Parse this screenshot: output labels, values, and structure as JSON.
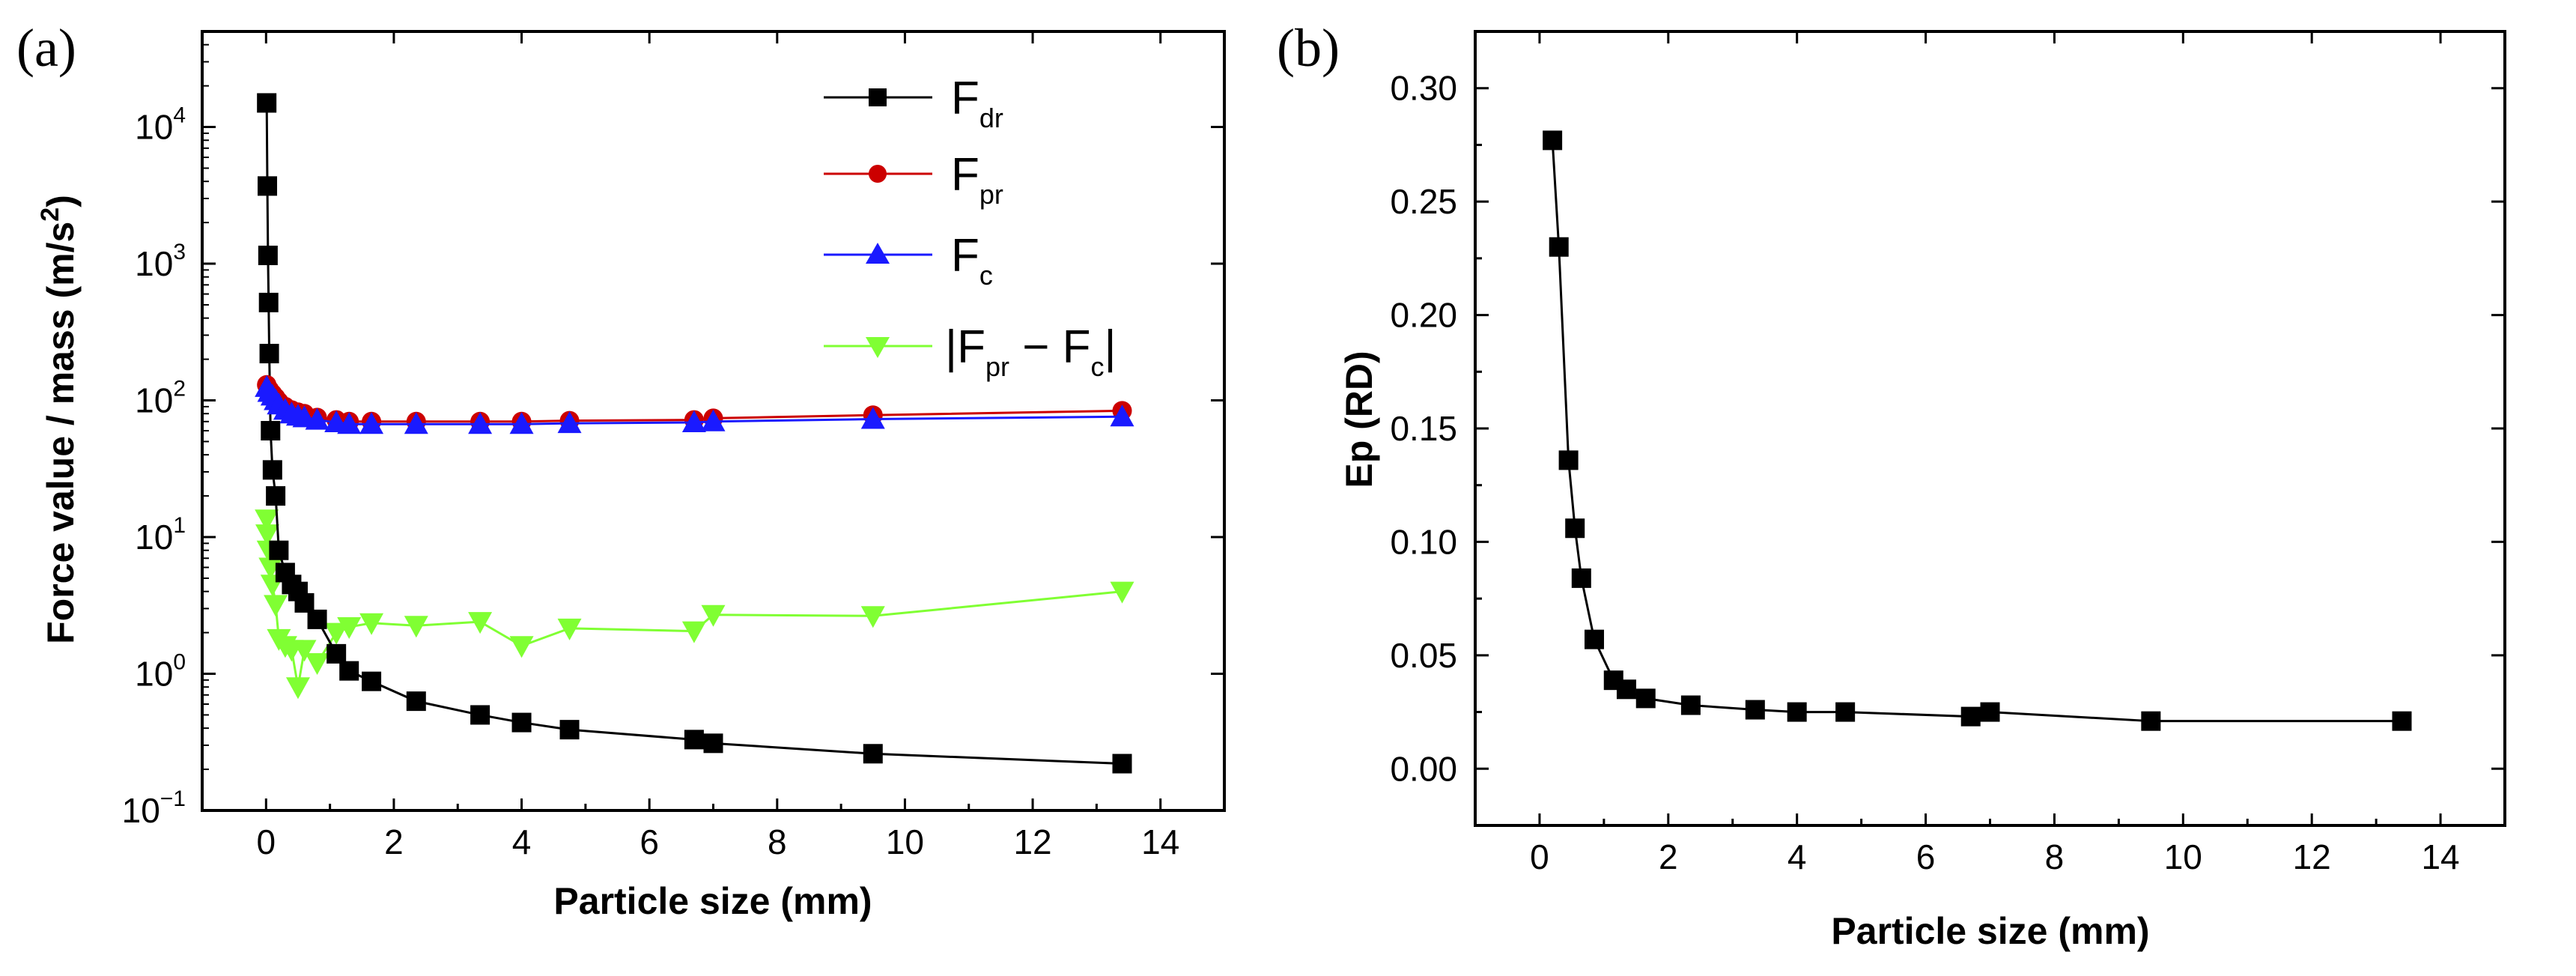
{
  "panels": [
    {
      "label": "(a)"
    },
    {
      "label": "(b)"
    }
  ],
  "colors": {
    "F_dr": "#000000",
    "F_pr": "#cc0000",
    "F_c": "#1a1aff",
    "diff": "#80ff33"
  },
  "chart_data": [
    {
      "type": "line",
      "xlabel": "Particle size (mm)",
      "ylabel": "Force value / mass (m/s²)",
      "ylabel_parts": {
        "main": "Force value / mass (m/s",
        "sup": "2",
        "tail": ")"
      },
      "xlim": [
        -1,
        15
      ],
      "ylim": [
        0.1,
        50000
      ],
      "yscale": "log",
      "x_ticks": [
        "0",
        "2",
        "4",
        "6",
        "8",
        "10",
        "12",
        "14"
      ],
      "y_ticks": [
        {
          "value": 0.1,
          "base": "10",
          "exp": "−1"
        },
        {
          "value": 1,
          "base": "10",
          "exp": "0"
        },
        {
          "value": 10,
          "base": "10",
          "exp": "1"
        },
        {
          "value": 100,
          "base": "10",
          "exp": "2"
        },
        {
          "value": 1000,
          "base": "10",
          "exp": "3"
        },
        {
          "value": 10000,
          "base": "10",
          "exp": "4"
        }
      ],
      "legend_position": "top-right",
      "series": [
        {
          "key": "F_dr",
          "legend": {
            "main": "F",
            "sub": "dr"
          },
          "marker": "square",
          "x": [
            0.01,
            0.02,
            0.03,
            0.04,
            0.05,
            0.07,
            0.1,
            0.15,
            0.2,
            0.3,
            0.4,
            0.5,
            0.6,
            0.8,
            1.1,
            1.3,
            1.65,
            2.35,
            3.35,
            4.0,
            4.75,
            6.7,
            7.0,
            9.5,
            13.4
          ],
          "y": [
            15000,
            3700,
            1150,
            520,
            220,
            60,
            31,
            20,
            8,
            5.5,
            4.5,
            4.0,
            3.3,
            2.5,
            1.4,
            1.05,
            0.88,
            0.63,
            0.5,
            0.44,
            0.39,
            0.33,
            0.31,
            0.26,
            0.22
          ]
        },
        {
          "key": "F_pr",
          "legend": {
            "main": "F",
            "sub": "pr"
          },
          "marker": "circle",
          "x": [
            0.01,
            0.05,
            0.1,
            0.15,
            0.2,
            0.3,
            0.4,
            0.5,
            0.6,
            0.8,
            1.1,
            1.3,
            1.65,
            2.35,
            3.35,
            4.0,
            4.75,
            6.7,
            7.0,
            9.5,
            13.4
          ],
          "y": [
            130,
            120,
            112,
            105,
            98,
            90,
            85,
            82,
            80,
            75,
            72,
            70,
            70,
            70,
            70,
            70,
            71,
            72,
            74,
            78,
            84
          ]
        },
        {
          "key": "F_c",
          "legend": {
            "main": "F",
            "sub": "c"
          },
          "marker": "triangle-up",
          "x": [
            0.01,
            0.05,
            0.1,
            0.15,
            0.2,
            0.3,
            0.4,
            0.5,
            0.6,
            0.8,
            1.1,
            1.3,
            1.65,
            2.35,
            3.35,
            4.0,
            4.75,
            6.7,
            7.0,
            9.5,
            13.4
          ],
          "y": [
            125,
            115,
            108,
            100,
            93,
            85,
            80,
            77,
            75,
            72,
            69,
            67,
            67,
            67,
            67,
            67,
            68,
            69,
            70,
            73,
            76
          ]
        },
        {
          "key": "diff",
          "legend": {
            "main": "|F",
            "sub1": "pr",
            "mid": " − F",
            "sub2": "c",
            "end": "|"
          },
          "marker": "triangle-down",
          "x": [
            0.01,
            0.02,
            0.04,
            0.07,
            0.1,
            0.15,
            0.2,
            0.3,
            0.4,
            0.5,
            0.6,
            0.8,
            1.1,
            1.3,
            1.65,
            2.35,
            3.35,
            4.0,
            4.75,
            6.7,
            7.0,
            9.5,
            13.4
          ],
          "y": [
            13.5,
            10.5,
            8,
            6,
            4.5,
            3.2,
            1.8,
            1.6,
            1.5,
            0.8,
            1.5,
            1.2,
            2.0,
            2.2,
            2.35,
            2.25,
            2.4,
            1.6,
            2.15,
            2.05,
            2.7,
            2.65,
            4.0
          ]
        }
      ]
    },
    {
      "type": "line",
      "xlabel": "Particle size (mm)",
      "ylabel": "Ep (RD)",
      "xlim": [
        -1,
        15
      ],
      "ylim": [
        -0.025,
        0.325
      ],
      "x_ticks": [
        "0",
        "2",
        "4",
        "6",
        "8",
        "10",
        "12",
        "14"
      ],
      "y_ticks": [
        "0.00",
        "0.05",
        "0.10",
        "0.15",
        "0.20",
        "0.25",
        "0.30"
      ],
      "series": [
        {
          "key": "Ep",
          "marker": "square",
          "x": [
            0.2,
            0.3,
            0.45,
            0.55,
            0.65,
            0.85,
            1.15,
            1.35,
            1.65,
            2.35,
            3.35,
            4.0,
            4.75,
            6.7,
            7.0,
            9.5,
            13.4
          ],
          "y": [
            0.277,
            0.23,
            0.136,
            0.106,
            0.084,
            0.057,
            0.039,
            0.035,
            0.031,
            0.028,
            0.026,
            0.025,
            0.025,
            0.023,
            0.025,
            0.021,
            0.021
          ]
        }
      ]
    }
  ]
}
